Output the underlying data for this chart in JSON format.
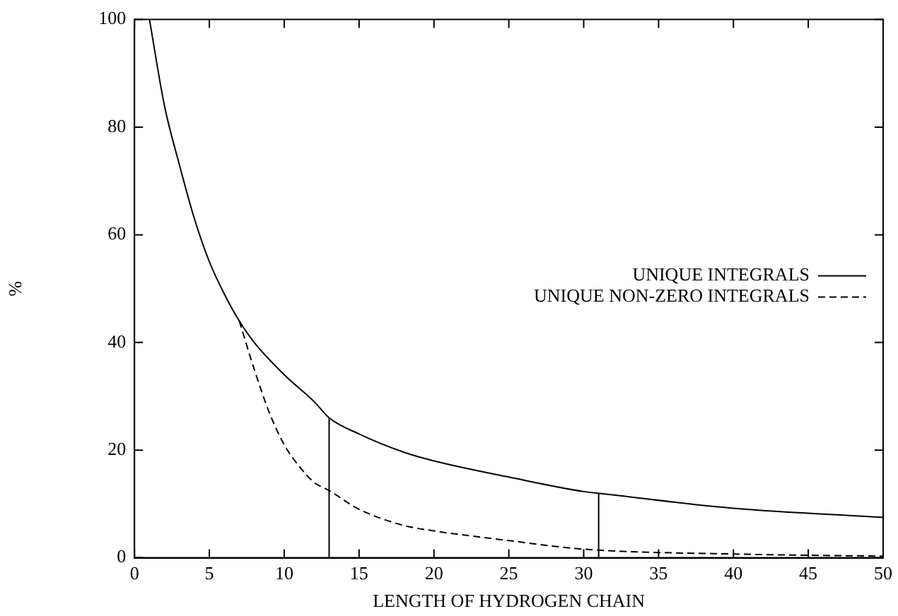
{
  "chart_data": {
    "type": "line",
    "xlabel": "LENGTH OF HYDROGEN CHAIN",
    "ylabel": "%",
    "xlim": [
      0,
      50
    ],
    "xticks": [
      0,
      5,
      10,
      15,
      20,
      25,
      30,
      35,
      40,
      45,
      50
    ],
    "ylim": [
      0,
      100
    ],
    "yticks": [
      0,
      20,
      40,
      60,
      80,
      100
    ],
    "grid": false,
    "legend": "right",
    "marker": "none",
    "series": [
      {
        "name": "UNIQUE INTEGRALS",
        "color": "#000000",
        "line_style": "solid",
        "x": [
          1,
          2,
          3,
          4,
          5,
          6,
          7,
          8,
          10,
          12,
          13,
          15,
          18,
          20,
          25,
          30,
          31,
          40,
          50
        ],
        "values": [
          100,
          84,
          73,
          63,
          55,
          49,
          44,
          40,
          34,
          29,
          26,
          23,
          19.6,
          18,
          15,
          12.3,
          12,
          9.2,
          7.5
        ]
      },
      {
        "name": "UNIQUE NON-ZERO INTEGRALS",
        "color": "#000000",
        "line_style": "dashed",
        "x": [
          7,
          8,
          9,
          10,
          11,
          12,
          13,
          15,
          18,
          20,
          25,
          30,
          40,
          50
        ],
        "values": [
          44,
          35,
          27,
          21,
          17,
          14,
          12.5,
          9,
          6,
          5,
          3.2,
          1.6,
          0.7,
          0.3
        ]
      },
      {
        "color": "#000000",
        "line_style": "solid",
        "x": [
          13,
          13
        ],
        "values": [
          0,
          26
        ]
      },
      {
        "color": "#000000",
        "line_style": "solid",
        "x": [
          31,
          31
        ],
        "values": [
          0,
          12
        ]
      }
    ]
  }
}
